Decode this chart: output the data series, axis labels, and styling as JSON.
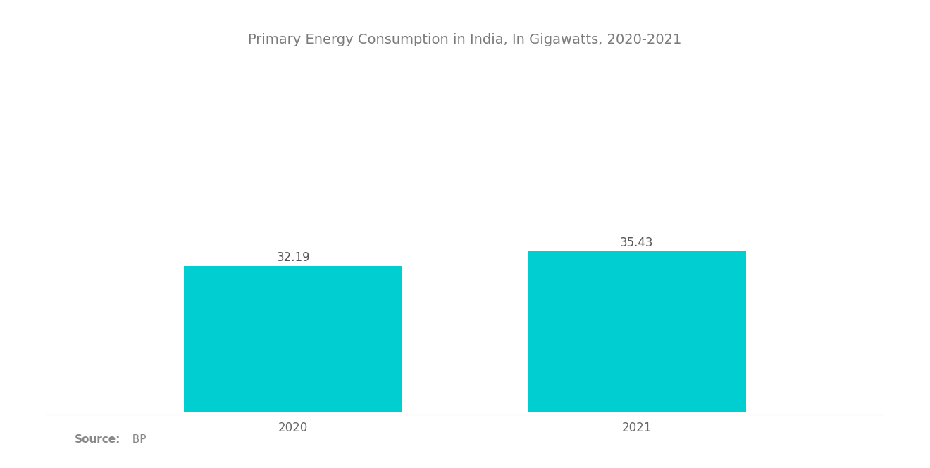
{
  "title": "Primary Energy Consumption in India, In Gigawatts, 2020-2021",
  "categories": [
    "2020",
    "2021"
  ],
  "values": [
    32.19,
    35.43
  ],
  "bar_color": "#00CED1",
  "background_color": "#ffffff",
  "title_color": "#7a7a7a",
  "label_color": "#666666",
  "value_label_color": "#555555",
  "source_bold": "Source:",
  "source_rest": "  BP",
  "source_color": "#888888",
  "title_fontsize": 14,
  "label_fontsize": 12,
  "value_fontsize": 12,
  "source_fontsize": 11,
  "bar_width": 0.28,
  "ylim": [
    0,
    60
  ],
  "x_positions": [
    0.28,
    0.72
  ],
  "xlim": [
    0.0,
    1.0
  ],
  "figsize": [
    13.2,
    6.65
  ],
  "dpi": 100
}
